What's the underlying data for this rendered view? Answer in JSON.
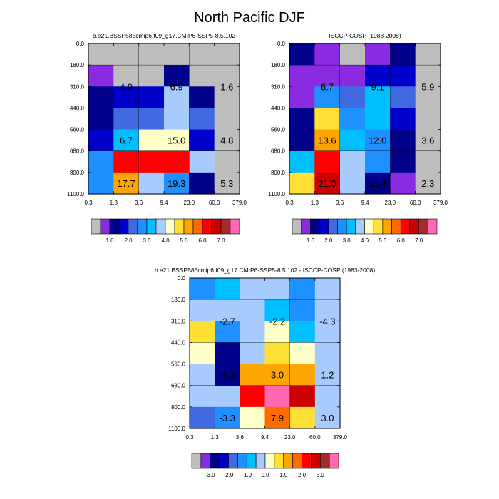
{
  "title": "North Pacific DJF",
  "colors": {
    "missing": "#bdbdbd",
    "palette": [
      "#bdbdbd",
      "#8a2be2",
      "#00008b",
      "#0000cd",
      "#4169e1",
      "#1e90ff",
      "#00bfff",
      "#a7cbff",
      "#ffffc8",
      "#ffe135",
      "#ffa500",
      "#ff6a00",
      "#ff0000",
      "#cc0000",
      "#a52a2a",
      "#ff69b4"
    ]
  },
  "chart_data": [
    {
      "type": "heatmap",
      "title": "b.e21.BSSP585cmip6.f09_g17.CMIP6-SSP5-8.5.102",
      "x_ticks": [
        "0.3",
        "1.3",
        "3.6",
        "9.4",
        "23.0",
        "60.0",
        "379.0"
      ],
      "y_ticks": [
        "0.0",
        "180.0",
        "310.0",
        "440.0",
        "560.0",
        "680.0",
        "800.0",
        "1100.0"
      ],
      "cells": [
        [
          0,
          0,
          0,
          0,
          0,
          0
        ],
        [
          1,
          0,
          0,
          2,
          0,
          0
        ],
        [
          2,
          3,
          3,
          7,
          2,
          0
        ],
        [
          2,
          4,
          4,
          7,
          4,
          0
        ],
        [
          3,
          6,
          8,
          8,
          3,
          0
        ],
        [
          5,
          12,
          12,
          12,
          7,
          0
        ],
        [
          5,
          10,
          7,
          5,
          2,
          0
        ]
      ],
      "annotations": [
        {
          "row": 1.5,
          "col": 1,
          "text": "4.0"
        },
        {
          "row": 1.5,
          "col": 3,
          "text": "6.9"
        },
        {
          "row": 1.5,
          "col": 5,
          "text": "1.6"
        },
        {
          "row": 4,
          "col": 1,
          "text": "6.7"
        },
        {
          "row": 4,
          "col": 3,
          "text": "15.0"
        },
        {
          "row": 4,
          "col": 5,
          "text": "4.8"
        },
        {
          "row": 6,
          "col": 1,
          "text": "17.7"
        },
        {
          "row": 6,
          "col": 3,
          "text": "19.3"
        },
        {
          "row": 6,
          "col": 5,
          "text": "5.3"
        }
      ],
      "colorbar": {
        "labels": [
          "1.0",
          "2.0",
          "3.0",
          "4.0",
          "5.0",
          "6.0",
          "7.0"
        ],
        "label_boundary_index": [
          2,
          4,
          6,
          8,
          10,
          12,
          14
        ]
      }
    },
    {
      "type": "heatmap",
      "title": "ISCCP-COSP (1983-2008)",
      "x_ticks": [
        "0.3",
        "1.3",
        "3.6",
        "9.4",
        "23.0",
        "60.0",
        "379.0"
      ],
      "y_ticks": [
        "0.0",
        "180.0",
        "310.0",
        "440.0",
        "560.0",
        "680.0",
        "800.0",
        "1100.0"
      ],
      "cells": [
        [
          2,
          1,
          0,
          1,
          2,
          0
        ],
        [
          1,
          1,
          1,
          3,
          3,
          0
        ],
        [
          1,
          5,
          4,
          6,
          4,
          0
        ],
        [
          2,
          9,
          5,
          6,
          3,
          0
        ],
        [
          2,
          10,
          6,
          5,
          2,
          0
        ],
        [
          6,
          12,
          7,
          5,
          2,
          0
        ],
        [
          9,
          13,
          7,
          2,
          1,
          0
        ]
      ],
      "annotations": [
        {
          "row": 1.5,
          "col": 1,
          "text": "6.7"
        },
        {
          "row": 1.5,
          "col": 3,
          "text": "9.1"
        },
        {
          "row": 1.5,
          "col": 5,
          "text": "5.9"
        },
        {
          "row": 4,
          "col": 1,
          "text": "13.6"
        },
        {
          "row": 4,
          "col": 3,
          "text": "12.0"
        },
        {
          "row": 4,
          "col": 5,
          "text": "3.6"
        },
        {
          "row": 6,
          "col": 1,
          "text": "21.0"
        },
        {
          "row": 6,
          "col": 3,
          "text": "11.4"
        },
        {
          "row": 6,
          "col": 5,
          "text": "2.3"
        }
      ],
      "colorbar": {
        "labels": [
          "1.0",
          "2.0",
          "3.0",
          "4.0",
          "5.0",
          "6.0",
          "7.0"
        ],
        "label_boundary_index": [
          2,
          4,
          6,
          8,
          10,
          12,
          14
        ]
      }
    },
    {
      "type": "heatmap",
      "title": "b.e21.BSSP585cmip6.f09_g17.CMIP6-SSP5-8.5.102 - ISCCP-COSP (1983-2008)",
      "x_ticks": [
        "0.3",
        "1.3",
        "3.6",
        "9.4",
        "23.0",
        "60.0",
        "379.0"
      ],
      "y_ticks": [
        "0.0",
        "180.0",
        "310.0",
        "440.0",
        "560.0",
        "680.0",
        "800.0",
        "1100.0"
      ],
      "cells": [
        [
          5,
          6,
          7,
          7,
          5,
          7
        ],
        [
          7,
          7,
          7,
          6,
          5,
          7
        ],
        [
          9,
          5,
          7,
          8,
          6,
          7
        ],
        [
          8,
          2,
          7,
          9,
          8,
          7
        ],
        [
          7,
          2,
          10,
          10,
          10,
          7
        ],
        [
          7,
          7,
          12,
          15,
          13,
          7
        ],
        [
          4,
          5,
          8,
          11,
          9,
          7
        ]
      ],
      "annotations": [
        {
          "row": 1.5,
          "col": 1,
          "text": "-2.7"
        },
        {
          "row": 1.5,
          "col": 3,
          "text": "-2.2"
        },
        {
          "row": 1.5,
          "col": 5,
          "text": "-4.3"
        },
        {
          "row": 4,
          "col": 1,
          "text": "-4.3"
        },
        {
          "row": 4,
          "col": 3,
          "text": "3.0"
        },
        {
          "row": 4,
          "col": 5,
          "text": "1.2"
        },
        {
          "row": 6,
          "col": 1,
          "text": "-3.3"
        },
        {
          "row": 6,
          "col": 3,
          "text": "7.9"
        },
        {
          "row": 6,
          "col": 5,
          "text": "3.0"
        }
      ],
      "colorbar": {
        "labels": [
          "-3.0",
          "-2.0",
          "-1.0",
          "0.0",
          "1.0",
          "2.0",
          "3.0"
        ],
        "label_boundary_index": [
          2,
          4,
          6,
          8,
          10,
          12,
          14
        ]
      }
    }
  ]
}
